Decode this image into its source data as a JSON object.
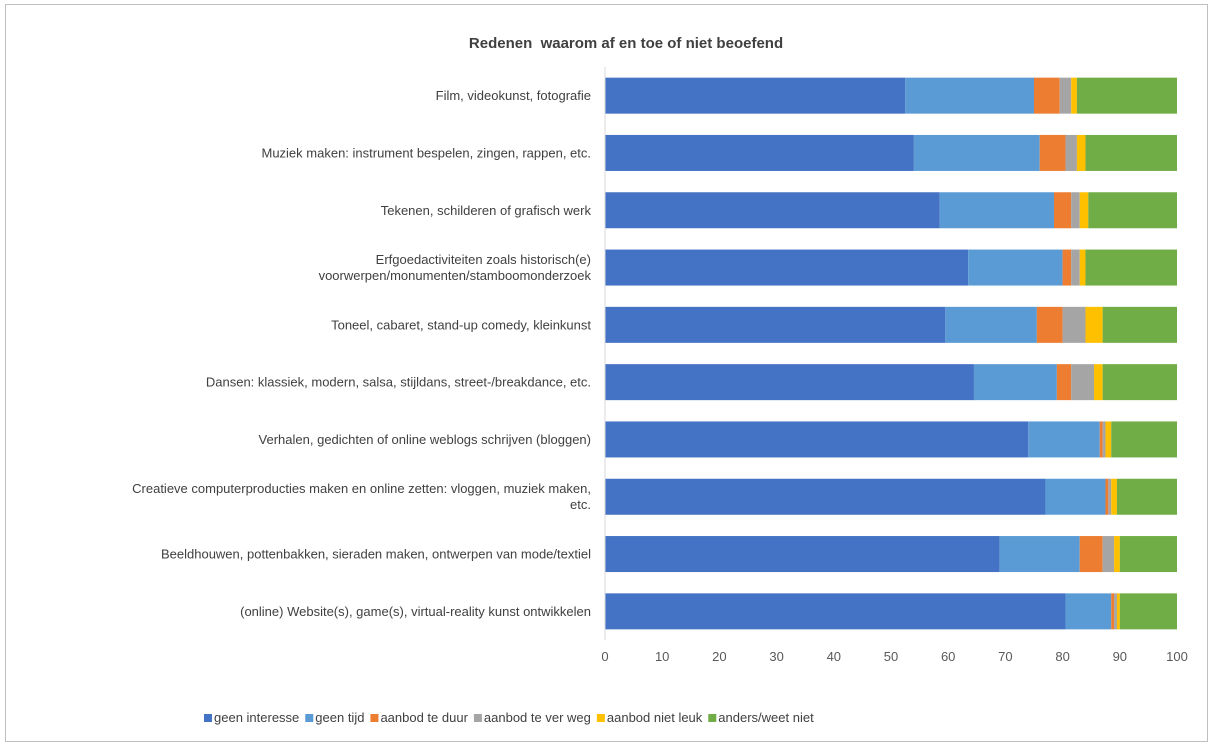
{
  "chart_data": {
    "type": "bar",
    "orientation": "horizontal",
    "stacked": true,
    "title": "Redenen  waarom af en toe of niet beoefend",
    "categories": [
      [
        "Film, videokunst, fotografie"
      ],
      [
        "Muziek maken: instrument bespelen, zingen, rappen, etc."
      ],
      [
        "Tekenen, schilderen of grafisch werk"
      ],
      [
        "Erfgoedactiviteiten zoals historisch(e)",
        "voorwerpen/monumenten/stamboomonderzoek"
      ],
      [
        "Toneel, cabaret, stand-up comedy, kleinkunst"
      ],
      [
        "Dansen: klassiek, modern, salsa, stijldans, street-/breakdance, etc."
      ],
      [
        "Verhalen, gedichten of online weblogs schrijven (bloggen)"
      ],
      [
        "Creatieve computerproducties maken en online zetten: vloggen, muziek maken,",
        "etc."
      ],
      [
        "Beeldhouwen, pottenbakken, sieraden maken, ontwerpen van mode/textiel"
      ],
      [
        "(online) Website(s), game(s), virtual-reality kunst ontwikkelen"
      ]
    ],
    "series": [
      {
        "name": "geen interesse",
        "color": "#4472c4",
        "values": [
          52.5,
          54.0,
          58.5,
          63.5,
          59.5,
          64.5,
          74.0,
          77.0,
          69.0,
          80.5
        ]
      },
      {
        "name": "geen tijd",
        "color": "#5b9bd5",
        "values": [
          22.5,
          22.0,
          20.0,
          16.5,
          16.0,
          14.5,
          12.5,
          10.5,
          14.0,
          8.0
        ]
      },
      {
        "name": "aanbod te duur",
        "color": "#ed7d31",
        "values": [
          4.5,
          4.5,
          3.0,
          1.5,
          4.5,
          2.5,
          0.5,
          0.5,
          4.0,
          0.5
        ]
      },
      {
        "name": "aanbod te ver weg",
        "color": "#a5a5a5",
        "values": [
          2.0,
          2.0,
          1.5,
          1.5,
          4.0,
          4.0,
          0.5,
          0.5,
          2.0,
          0.5
        ]
      },
      {
        "name": "aanbod niet leuk",
        "color": "#ffc000",
        "values": [
          1.0,
          1.5,
          1.5,
          1.0,
          3.0,
          1.5,
          1.0,
          1.0,
          1.0,
          0.5
        ]
      },
      {
        "name": "anders/weet niet",
        "color": "#70ad47",
        "values": [
          17.5,
          16.0,
          15.5,
          16.0,
          13.0,
          13.0,
          11.5,
          10.5,
          10.0,
          10.0
        ]
      }
    ],
    "xlim": [
      0,
      100
    ],
    "xticks": [
      0,
      10,
      20,
      30,
      40,
      50,
      60,
      70,
      80,
      90,
      100
    ],
    "grid": false,
    "legend": "bottom"
  }
}
